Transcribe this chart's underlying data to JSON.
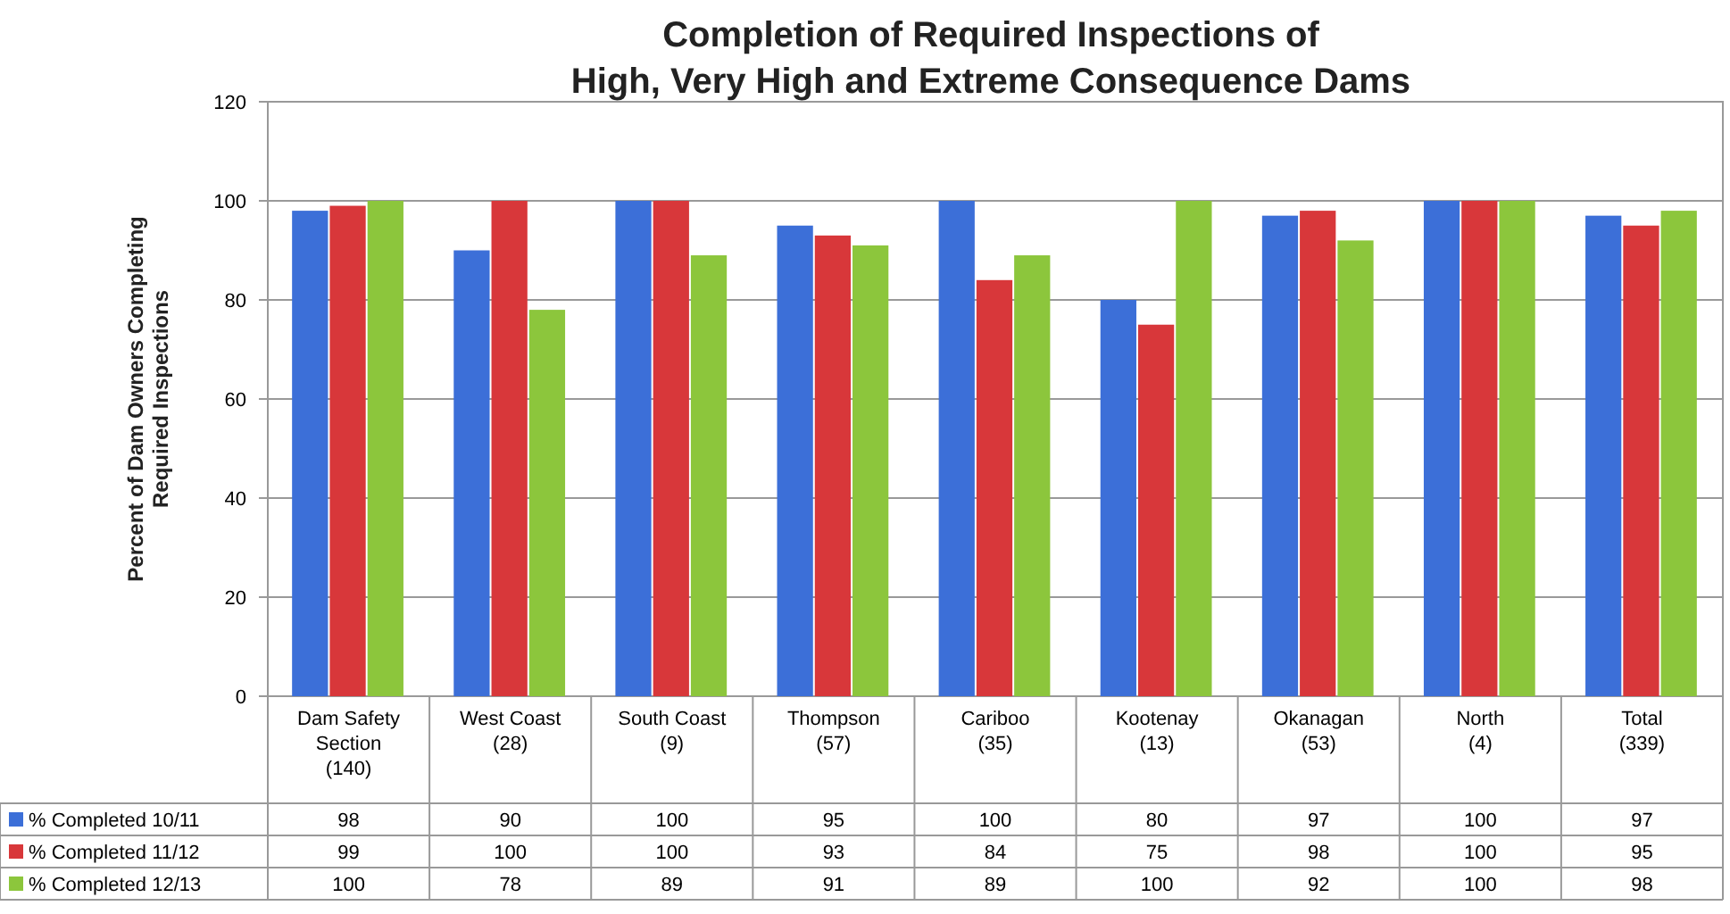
{
  "chart_data": {
    "type": "bar",
    "title": "Completion of Required Inspections of\nHigh, Very High and Extreme Consequence Dams",
    "ylabel": "Percent of Dam Owners Completing\nRequired Inspections",
    "categories": [
      "Dam Safety\nSection\n(140)",
      "West Coast\n(28)",
      "South Coast\n(9)",
      "Thompson\n(57)",
      "Cariboo\n(35)",
      "Kootenay\n(13)",
      "Okanagan\n(53)",
      "North\n(4)",
      "Total\n(339)"
    ],
    "series": [
      {
        "name": "% Completed 10/11",
        "color": "#3c6fd8",
        "values": [
          98,
          90,
          100,
          95,
          100,
          80,
          97,
          100,
          97
        ]
      },
      {
        "name": "% Completed 11/12",
        "color": "#d8373a",
        "values": [
          99,
          100,
          100,
          93,
          84,
          75,
          98,
          100,
          95
        ]
      },
      {
        "name": "% Completed 12/13",
        "color": "#8cc63c",
        "values": [
          100,
          78,
          89,
          91,
          89,
          100,
          92,
          100,
          98
        ]
      }
    ],
    "ylim": [
      0,
      120
    ],
    "yticks": [
      0,
      20,
      40,
      60,
      80,
      100,
      120
    ],
    "grid": "y",
    "legend": "bottom",
    "data_labels": true
  }
}
